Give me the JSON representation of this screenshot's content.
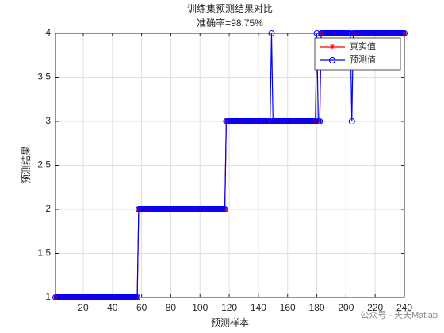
{
  "chart_data": {
    "type": "line",
    "title": "训练集预测结果对比",
    "subtitle": "准确率=98.75%",
    "xlabel": "预测样本",
    "ylabel": "预测结果",
    "watermark": "公众号 · 天天Matlab",
    "x": [
      1,
      2,
      3,
      4,
      5,
      6,
      7,
      8,
      9,
      10,
      11,
      12,
      13,
      14,
      15,
      16,
      17,
      18,
      19,
      20,
      21,
      22,
      23,
      24,
      25,
      26,
      27,
      28,
      29,
      30,
      31,
      32,
      33,
      34,
      35,
      36,
      37,
      38,
      39,
      40,
      41,
      42,
      43,
      44,
      45,
      46,
      47,
      48,
      49,
      50,
      51,
      52,
      53,
      54,
      55,
      56,
      57,
      58,
      59,
      60,
      61,
      62,
      63,
      64,
      65,
      66,
      67,
      68,
      69,
      70,
      71,
      72,
      73,
      74,
      75,
      76,
      77,
      78,
      79,
      80,
      81,
      82,
      83,
      84,
      85,
      86,
      87,
      88,
      89,
      90,
      91,
      92,
      93,
      94,
      95,
      96,
      97,
      98,
      99,
      100,
      101,
      102,
      103,
      104,
      105,
      106,
      107,
      108,
      109,
      110,
      111,
      112,
      113,
      114,
      115,
      116,
      117,
      118,
      119,
      120,
      121,
      122,
      123,
      124,
      125,
      126,
      127,
      128,
      129,
      130,
      131,
      132,
      133,
      134,
      135,
      136,
      137,
      138,
      139,
      140,
      141,
      142,
      143,
      144,
      145,
      146,
      147,
      148,
      149,
      150,
      151,
      152,
      153,
      154,
      155,
      156,
      157,
      158,
      159,
      160,
      161,
      162,
      163,
      164,
      165,
      166,
      167,
      168,
      169,
      170,
      171,
      172,
      173,
      174,
      175,
      176,
      177,
      178,
      179,
      180,
      181,
      182,
      183,
      184,
      185,
      186,
      187,
      188,
      189,
      190,
      191,
      192,
      193,
      194,
      195,
      196,
      197,
      198,
      199,
      200,
      201,
      202,
      203,
      204,
      205,
      206,
      207,
      208,
      209,
      210,
      211,
      212,
      213,
      214,
      215,
      216,
      217,
      218,
      219,
      220,
      221,
      222,
      223,
      224,
      225,
      226,
      227,
      228,
      229,
      230,
      231,
      232,
      233,
      234,
      235,
      236,
      237,
      238,
      239,
      240
    ],
    "series": [
      {
        "name": "真实值",
        "color": "#ff0000",
        "marker": "star",
        "values": [
          1,
          1,
          1,
          1,
          1,
          1,
          1,
          1,
          1,
          1,
          1,
          1,
          1,
          1,
          1,
          1,
          1,
          1,
          1,
          1,
          1,
          1,
          1,
          1,
          1,
          1,
          1,
          1,
          1,
          1,
          1,
          1,
          1,
          1,
          1,
          1,
          1,
          1,
          1,
          1,
          1,
          1,
          1,
          1,
          1,
          1,
          1,
          1,
          1,
          1,
          1,
          1,
          1,
          1,
          1,
          1,
          1,
          2,
          2,
          2,
          2,
          2,
          2,
          2,
          2,
          2,
          2,
          2,
          2,
          2,
          2,
          2,
          2,
          2,
          2,
          2,
          2,
          2,
          2,
          2,
          2,
          2,
          2,
          2,
          2,
          2,
          2,
          2,
          2,
          2,
          2,
          2,
          2,
          2,
          2,
          2,
          2,
          2,
          2,
          2,
          2,
          2,
          2,
          2,
          2,
          2,
          2,
          2,
          2,
          2,
          2,
          2,
          2,
          2,
          2,
          2,
          2,
          3,
          3,
          3,
          3,
          3,
          3,
          3,
          3,
          3,
          3,
          3,
          3,
          3,
          3,
          3,
          3,
          3,
          3,
          3,
          3,
          3,
          3,
          3,
          3,
          3,
          3,
          3,
          3,
          3,
          3,
          3,
          3,
          3,
          3,
          3,
          3,
          3,
          3,
          3,
          3,
          3,
          3,
          3,
          3,
          3,
          3,
          3,
          3,
          3,
          3,
          3,
          3,
          3,
          3,
          3,
          3,
          3,
          3,
          3,
          3,
          3,
          3,
          3,
          3,
          3,
          4,
          4,
          4,
          4,
          4,
          4,
          4,
          4,
          4,
          4,
          4,
          4,
          4,
          4,
          4,
          4,
          4,
          4,
          4,
          4,
          4,
          4,
          4,
          4,
          4,
          4,
          4,
          4,
          4,
          4,
          4,
          4,
          4,
          4,
          4,
          4,
          4,
          4,
          4,
          4,
          4,
          4,
          4,
          4,
          4,
          4,
          4,
          4,
          4,
          4,
          4,
          4,
          4,
          4,
          4,
          4,
          4,
          4
        ]
      },
      {
        "name": "预测值",
        "color": "#0000ff",
        "marker": "circle",
        "values": [
          1,
          1,
          1,
          1,
          1,
          1,
          1,
          1,
          1,
          1,
          1,
          1,
          1,
          1,
          1,
          1,
          1,
          1,
          1,
          1,
          1,
          1,
          1,
          1,
          1,
          1,
          1,
          1,
          1,
          1,
          1,
          1,
          1,
          1,
          1,
          1,
          1,
          1,
          1,
          1,
          1,
          1,
          1,
          1,
          1,
          1,
          1,
          1,
          1,
          1,
          1,
          1,
          1,
          1,
          1,
          1,
          1,
          2,
          2,
          2,
          2,
          2,
          2,
          2,
          2,
          2,
          2,
          2,
          2,
          2,
          2,
          2,
          2,
          2,
          2,
          2,
          2,
          2,
          2,
          2,
          2,
          2,
          2,
          2,
          2,
          2,
          2,
          2,
          2,
          2,
          2,
          2,
          2,
          2,
          2,
          2,
          2,
          2,
          2,
          2,
          2,
          2,
          2,
          2,
          2,
          2,
          2,
          2,
          2,
          2,
          2,
          2,
          2,
          2,
          2,
          2,
          2,
          3,
          3,
          3,
          3,
          3,
          3,
          3,
          3,
          3,
          3,
          3,
          3,
          3,
          3,
          3,
          3,
          3,
          3,
          3,
          3,
          3,
          3,
          3,
          3,
          3,
          3,
          3,
          3,
          3,
          3,
          3,
          4,
          3,
          3,
          3,
          3,
          3,
          3,
          3,
          3,
          3,
          3,
          3,
          3,
          3,
          3,
          3,
          3,
          3,
          3,
          3,
          3,
          3,
          3,
          3,
          3,
          3,
          3,
          3,
          3,
          3,
          3,
          4,
          3,
          3,
          4,
          4,
          4,
          4,
          4,
          4,
          4,
          4,
          4,
          4,
          4,
          4,
          4,
          4,
          4,
          4,
          4,
          4,
          4,
          4,
          4,
          3,
          4,
          4,
          4,
          4,
          4,
          4,
          4,
          4,
          4,
          4,
          4,
          4,
          4,
          4,
          4,
          4,
          4,
          4,
          4,
          4,
          4,
          4,
          4,
          4,
          4,
          4,
          4,
          4,
          4,
          4,
          4,
          4,
          4,
          4,
          4,
          4
        ]
      }
    ],
    "xlim": [
      1,
      240
    ],
    "ylim": [
      1,
      4
    ],
    "xticks": [
      20,
      40,
      60,
      80,
      100,
      120,
      140,
      160,
      180,
      200,
      220,
      240
    ],
    "yticks": [
      1,
      1.5,
      2,
      2.5,
      3,
      3.5,
      4
    ],
    "grid": true,
    "legend": "northeast"
  }
}
